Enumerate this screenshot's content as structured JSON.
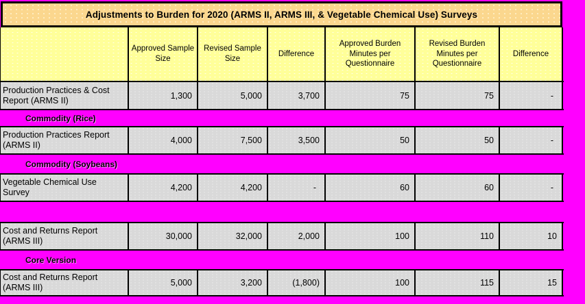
{
  "title": "Adjustments to Burden for 2020 (ARMS II, ARMS III, & Vegetable Chemical Use) Surveys",
  "columns": [
    "",
    "Approved Sample Size",
    "Revised Sample Size",
    "Difference",
    "Approved Burden Minutes per Questionnaire",
    "Revised Burden Minutes per Questionnaire",
    "Difference"
  ],
  "rows": [
    {
      "type": "data",
      "label": "Production Practices & Cost Report (ARMS II)",
      "values": [
        "1,300",
        "5,000",
        "3,700",
        "75",
        "75",
        "-"
      ]
    },
    {
      "type": "section",
      "label": "Commodity (Rice)"
    },
    {
      "type": "data",
      "label": "Production Practices Report (ARMS II)",
      "values": [
        "4,000",
        "7,500",
        "3,500",
        "50",
        "50",
        "-"
      ]
    },
    {
      "type": "section",
      "label": "Commodity (Soybeans)"
    },
    {
      "type": "data",
      "label": "Vegetable Chemical Use Survey",
      "values": [
        "4,200",
        "4,200",
        "-",
        "60",
        "60",
        "-"
      ]
    },
    {
      "type": "section",
      "label": ""
    },
    {
      "type": "data",
      "label": "Cost and Returns Report (ARMS III)",
      "values": [
        "30,000",
        "32,000",
        "2,000",
        "100",
        "110",
        "10"
      ]
    },
    {
      "type": "section",
      "label": "Core Version"
    },
    {
      "type": "data",
      "label": "Cost and Returns Report (ARMS III)",
      "values": [
        "5,000",
        "3,200",
        "(1,800)",
        "100",
        "115",
        "15"
      ]
    }
  ],
  "colors": {
    "canvas": "#FF00FF",
    "title_bg": "#FBD78E",
    "header_bg": "#FFFF99",
    "cell_bg": "#D9D9D9",
    "border": "#000000",
    "text": "#000000"
  }
}
